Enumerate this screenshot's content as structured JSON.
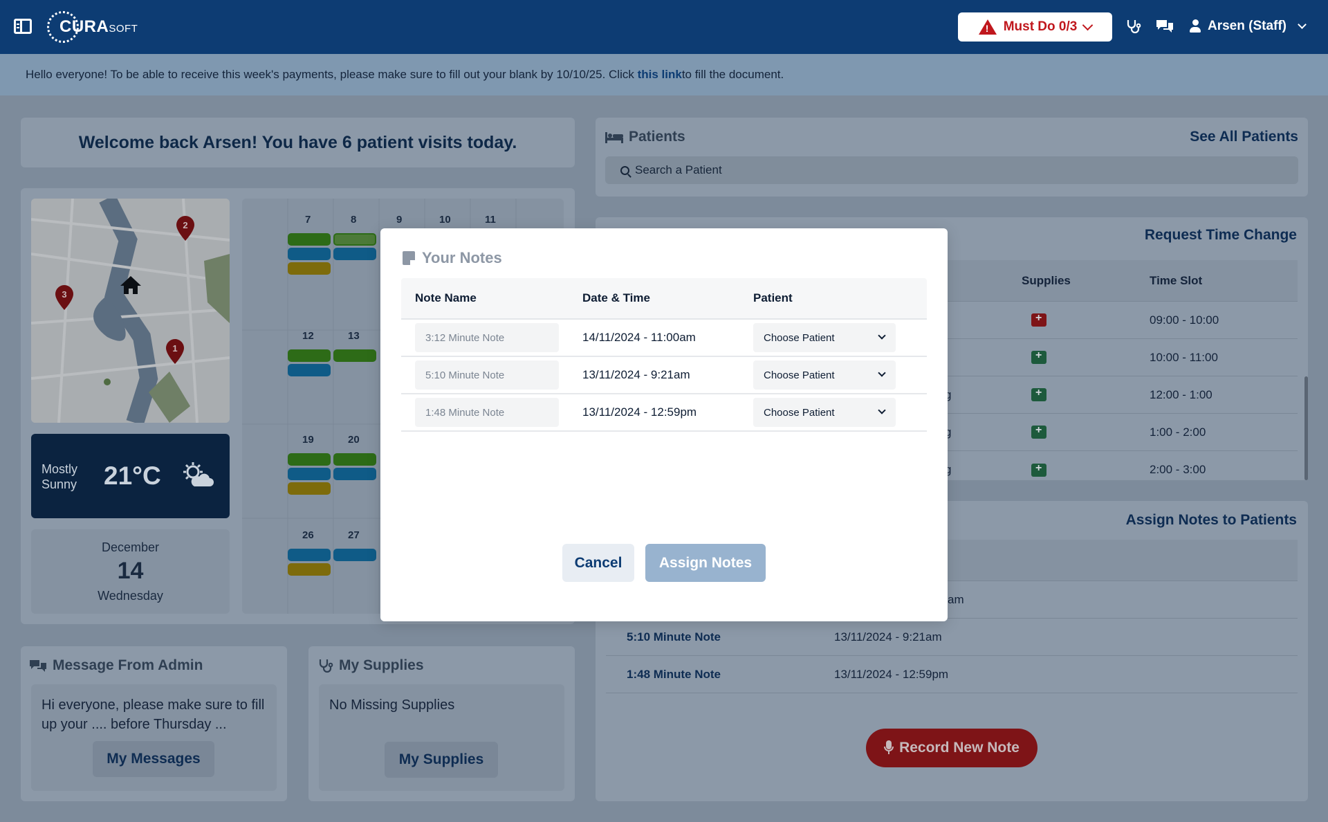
{
  "topbar": {
    "logo_main": "CURA",
    "logo_sub": "SOFT",
    "must_do_label": "Must Do 0/3",
    "user_label": "Arsen (Staff)"
  },
  "announcement": {
    "before": "Hello everyone! To be able to receive this week's payments, please make sure to fill out your blank by 10/10/25. Click ",
    "link": "this link",
    "after": " to fill the document."
  },
  "welcome": "Welcome back Arsen! You have 6 patient visits today.",
  "patients": {
    "title": "Patients",
    "see_all": "See All Patients",
    "search_placeholder": "Search a Patient"
  },
  "map": {
    "markers": [
      "1",
      "2",
      "3"
    ]
  },
  "weather": {
    "condition_line1": "Mostly",
    "condition_line2": "Sunny",
    "temperature": "21°C"
  },
  "date": {
    "month": "December",
    "day": "14",
    "weekday": "Wednesday"
  },
  "calendar": {
    "days": [
      "7",
      "8",
      "9",
      "10",
      "11",
      "12",
      "13",
      "19",
      "20",
      "26",
      "27"
    ],
    "event_colors": {
      "green": "#2d6b17",
      "blue": "#0f5b87",
      "yellow": "#7d6b0b"
    }
  },
  "appointments": {
    "request_link": "Request Time Change",
    "col_supplies": "Supplies",
    "col_time": "Time Slot",
    "rows": [
      {
        "partial": "",
        "time": "09:00 - 10:00",
        "supply_status": "missing"
      },
      {
        "partial": "",
        "time": "10:00 - 11:00",
        "supply_status": "ok"
      },
      {
        "partial": "g",
        "time": "12:00 - 1:00",
        "supply_status": "ok"
      },
      {
        "partial": "g",
        "time": "1:00 - 2:00",
        "supply_status": "ok"
      },
      {
        "partial": "g",
        "time": "2:00 - 3:00",
        "supply_status": "ok"
      }
    ]
  },
  "assign_notes_panel": {
    "title": "Assign Notes to Patients",
    "rows": [
      {
        "name": "",
        "datetime": "am"
      },
      {
        "name": "5:10 Minute Note",
        "datetime": "13/11/2024 - 9:21am"
      },
      {
        "name": "1:48 Minute Note",
        "datetime": "13/11/2024 - 12:59pm"
      }
    ],
    "record_label": "Record New Note"
  },
  "admin_message": {
    "title": "Message From Admin",
    "body": "Hi everyone, please make sure to fill up your .... before Thursday ...",
    "button": "My Messages"
  },
  "supplies": {
    "title": "My Supplies",
    "body": "No Missing Supplies",
    "button": "My Supplies"
  },
  "modal": {
    "title": "Your Notes",
    "col_note": "Note Name",
    "col_datetime": "Date & Time",
    "col_patient": "Patient",
    "rows": [
      {
        "note": "3:12 Minute Note",
        "datetime": "14/11/2024 - 11:00am",
        "patient": "Choose Patient"
      },
      {
        "note": "5:10 Minute Note",
        "datetime": "13/11/2024 - 9:21am",
        "patient": "Choose Patient"
      },
      {
        "note": "1:48 Minute Note",
        "datetime": "13/11/2024 - 12:59pm",
        "patient": "Choose Patient"
      }
    ],
    "cancel": "Cancel",
    "assign": "Assign Notes"
  }
}
